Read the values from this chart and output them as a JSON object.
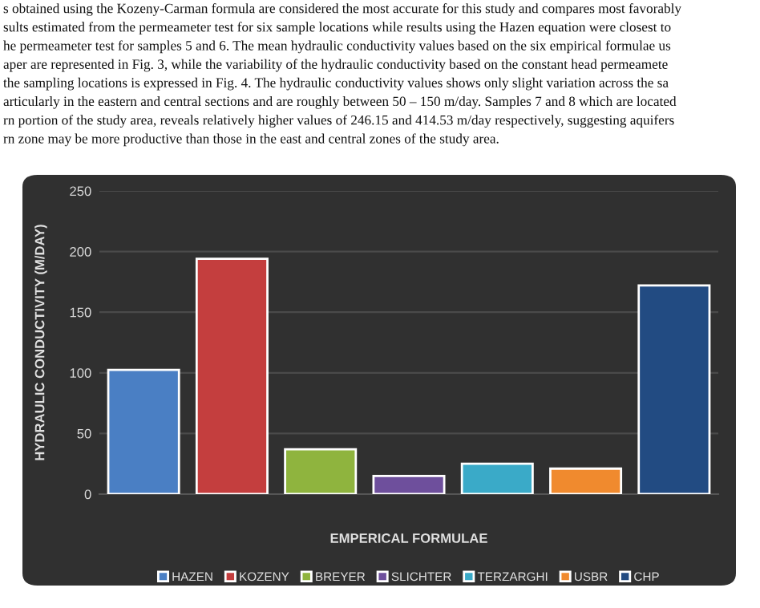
{
  "chart_data": {
    "type": "bar",
    "xlabel": "EMPERICAL FORMULAE",
    "ylabel": "HYDRAULIC CONDUCTIVITY (M/DAY)",
    "annotations": [
      "s obtained using the Kozeny-Carman formula are considered the most accurate for this study and compares most favorably",
      "sults estimated from the permeameter test for six sample locations while results using the Hazen equation were closest to",
      "he permeameter test for samples 5 and 6. The mean hydraulic conductivity values based on the six empirical formulae us",
      "aper are represented in Fig. 3, while the variability of the hydraulic conductivity based on the constant head permeamete",
      "the sampling locations is expressed in Fig. 4. The hydraulic conductivity values shows only slight variation across the sa",
      "articularly in the eastern and central sections and are roughly between 50 – 150 m/day. Samples 7 and 8 which are located",
      "rn portion of the study area, reveals relatively higher values of 246.15 and 414.53 m/day respectively, suggesting aquifers",
      "rn zone may be more productive than those in the east and central zones of the study area."
    ],
    "categories": [
      null,
      null,
      null,
      null,
      null,
      null,
      null
    ],
    "series": [
      {
        "name": "HAZEN",
        "color": "#4a7fc4",
        "values": [
          102.5,
          null,
          null,
          null,
          null,
          null,
          null
        ]
      },
      {
        "name": "KOZENY",
        "color": "#c43e3e",
        "values": [
          null,
          194,
          null,
          null,
          null,
          null,
          null
        ]
      },
      {
        "name": "BREYER",
        "color": "#8fb43e",
        "values": [
          null,
          null,
          37,
          null,
          null,
          null,
          null
        ]
      },
      {
        "name": "SLICHTER",
        "color": "#6e4f9c",
        "values": [
          null,
          null,
          null,
          15,
          null,
          null,
          null
        ]
      },
      {
        "name": "TERZARGHI",
        "color": "#3aaac8",
        "values": [
          null,
          null,
          null,
          null,
          25,
          null,
          null
        ]
      },
      {
        "name": "USBR",
        "color": "#f08a2e",
        "values": [
          null,
          null,
          null,
          null,
          null,
          21,
          null
        ]
      },
      {
        "name": "CHP",
        "color": "#224b82",
        "values": [
          null,
          null,
          null,
          null,
          null,
          null,
          172
        ]
      }
    ],
    "ylim": [
      0,
      250
    ],
    "yticks": [
      0,
      50,
      100,
      150,
      200,
      250
    ],
    "grid": "y",
    "legend": "bottom"
  }
}
